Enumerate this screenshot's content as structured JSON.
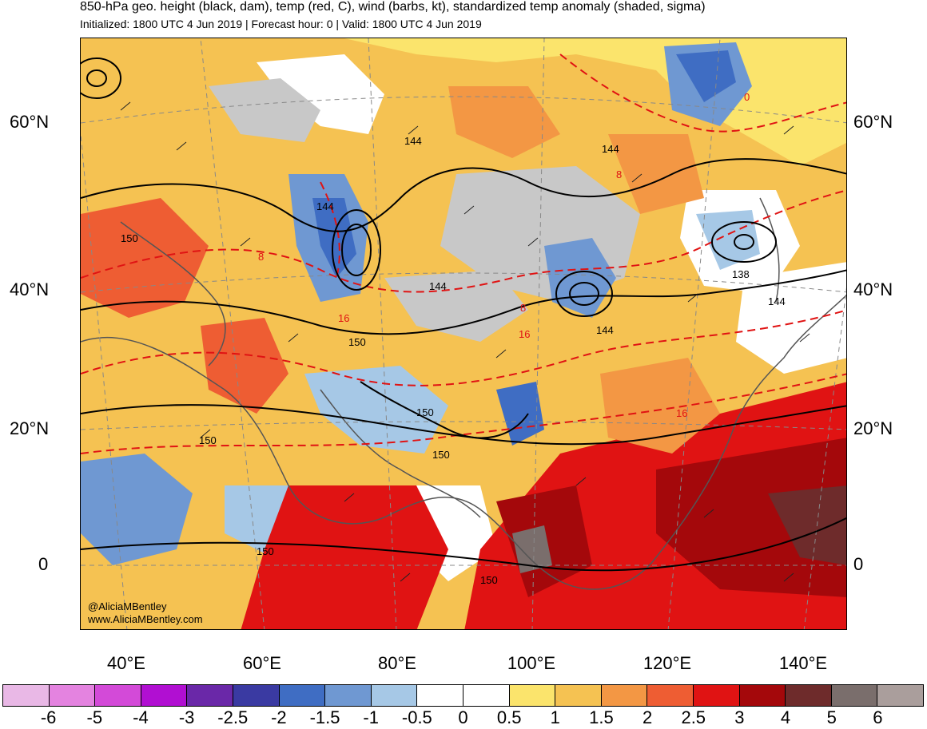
{
  "header": {
    "title": "850-hPa geo. height (black, dam), temp (red, C), wind (barbs, kt), standardized temp anomaly (shaded, sigma)",
    "subtitle": "Initialized: 1800 UTC 4 Jun 2019 | Forecast hour: 0 | Valid: 1800 UTC 4 Jun 2019"
  },
  "axes": {
    "lat_left": [
      "60°N",
      "40°N",
      "20°N",
      "0"
    ],
    "lat_right": [
      "60°N",
      "40°N",
      "20°N",
      "0"
    ],
    "lon": [
      "40°E",
      "60°E",
      "80°E",
      "100°E",
      "120°E",
      "140°E"
    ]
  },
  "height_contour_labels": [
    "144",
    "144",
    "144",
    "144",
    "144",
    "144",
    "150",
    "150",
    "150",
    "150",
    "150",
    "150",
    "150",
    "138"
  ],
  "temp_contour_labels": [
    "8",
    "8",
    "8",
    "16",
    "16",
    "16",
    "0"
  ],
  "credits": {
    "handle": "@AliciaMBentley",
    "site": "www.AliciaMBentley.com"
  },
  "colorbar": {
    "labels": [
      "-6",
      "-5",
      "-4",
      "-3",
      "-2.5",
      "-2",
      "-1.5",
      "-1",
      "-0.5",
      "0",
      "0.5",
      "1",
      "1.5",
      "2",
      "2.5",
      "3",
      "4",
      "5",
      "6"
    ],
    "colors": [
      "#e9b8e6",
      "#e483e0",
      "#d34ad8",
      "#b10fd2",
      "#6a28a8",
      "#3a3aa2",
      "#3f6dc3",
      "#6f98d2",
      "#a6c8e6",
      "#ffffff",
      "#ffffff",
      "#fbe46c",
      "#f5c252",
      "#f39744",
      "#ee5d33",
      "#e01313",
      "#a4080b",
      "#6e2b2b",
      "#7a6e6c",
      "#aa9e9c"
    ]
  }
}
